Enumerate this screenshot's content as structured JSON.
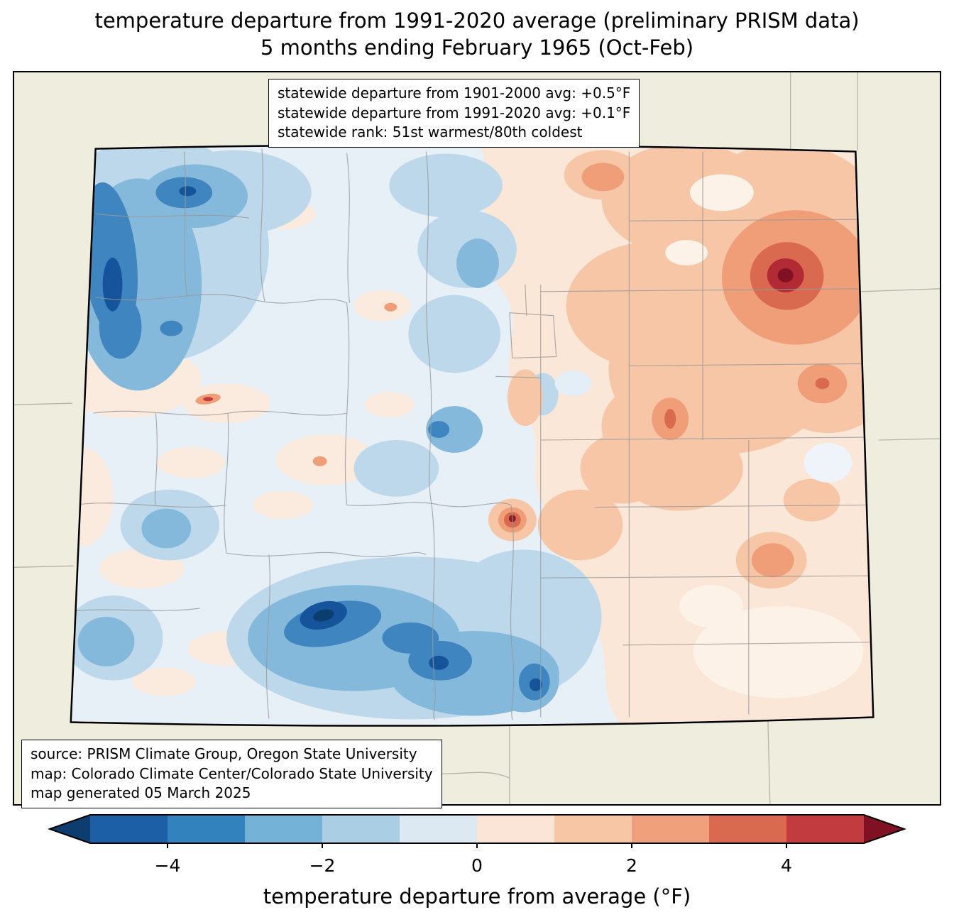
{
  "title": {
    "line1": "temperature departure from 1991-2020 average (preliminary PRISM data)",
    "line2": "5 months ending February 1965 (Oct-Feb)"
  },
  "info_box": {
    "line1": "statewide departure from 1901-2000 avg: +0.5°F",
    "line2": "statewide departure from 1991-2020 avg: +0.1°F",
    "line3": "statewide rank: 51st warmest/80th coldest"
  },
  "source_box": {
    "line1": "source: PRISM Climate Group, Oregon State University",
    "line2": "map: Colorado Climate Center/Colorado State University",
    "line3": "map generated 05 March 2025"
  },
  "colorbar": {
    "label": "temperature departure from average (°F)",
    "range": [
      -5,
      5
    ],
    "ticks": [
      {
        "value": -4,
        "label": "−4"
      },
      {
        "value": -2,
        "label": "−2"
      },
      {
        "value": 0,
        "label": "0"
      },
      {
        "value": 2,
        "label": "2"
      },
      {
        "value": 4,
        "label": "4"
      }
    ],
    "segment_colors": [
      "#1d5fa6",
      "#3282bd",
      "#74b2d8",
      "#aacfe5",
      "#dce9f3",
      "#fae5d7",
      "#f7c6a5",
      "#f0a07a",
      "#d96a50",
      "#c23b3e"
    ],
    "under_color": "#0b3d6e",
    "over_color": "#7f1123"
  },
  "map": {
    "region": "Colorado",
    "background_color": "#efeede",
    "units": "°F"
  }
}
